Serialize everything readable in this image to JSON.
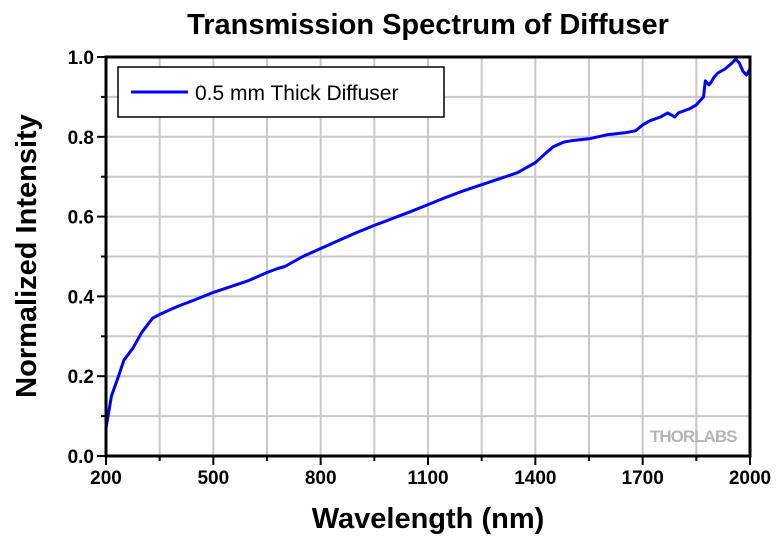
{
  "chart_data": {
    "type": "line",
    "title": "Transmission Spectrum of Diffuser",
    "xlabel": "Wavelength (nm)",
    "ylabel": "Normalized Intensity",
    "xlim": [
      200,
      2000
    ],
    "ylim": [
      0.0,
      1.0
    ],
    "xticks": [
      "200",
      "500",
      "800",
      "1100",
      "1400",
      "1700",
      "2000"
    ],
    "yticks": [
      "0.0",
      "0.2",
      "0.4",
      "0.6",
      "0.8",
      "1.0"
    ],
    "grid": true,
    "legend_position": "top-left",
    "watermark": "THORLABS",
    "series": [
      {
        "name": "0.5 mm Thick Diffuser",
        "color": "#0000ff",
        "x": [
          200,
          215,
          235,
          250,
          275,
          300,
          330,
          350,
          400,
          450,
          500,
          550,
          600,
          650,
          680,
          700,
          750,
          800,
          850,
          900,
          950,
          1000,
          1050,
          1100,
          1150,
          1200,
          1250,
          1300,
          1350,
          1400,
          1430,
          1450,
          1480,
          1500,
          1550,
          1600,
          1650,
          1680,
          1700,
          1720,
          1750,
          1770,
          1790,
          1800,
          1830,
          1850,
          1870,
          1875,
          1885,
          1890,
          1900,
          1910,
          1930,
          1950,
          1960,
          1970,
          1980,
          1990,
          2000
        ],
        "y": [
          0.07,
          0.15,
          0.2,
          0.24,
          0.27,
          0.31,
          0.345,
          0.355,
          0.375,
          0.392,
          0.41,
          0.425,
          0.44,
          0.46,
          0.47,
          0.475,
          0.5,
          0.52,
          0.54,
          0.56,
          0.578,
          0.595,
          0.612,
          0.63,
          0.648,
          0.665,
          0.68,
          0.695,
          0.71,
          0.735,
          0.76,
          0.775,
          0.787,
          0.79,
          0.795,
          0.805,
          0.81,
          0.815,
          0.83,
          0.84,
          0.85,
          0.86,
          0.85,
          0.86,
          0.87,
          0.88,
          0.9,
          0.94,
          0.93,
          0.935,
          0.95,
          0.96,
          0.97,
          0.985,
          0.995,
          0.985,
          0.965,
          0.955,
          0.97
        ]
      }
    ]
  }
}
